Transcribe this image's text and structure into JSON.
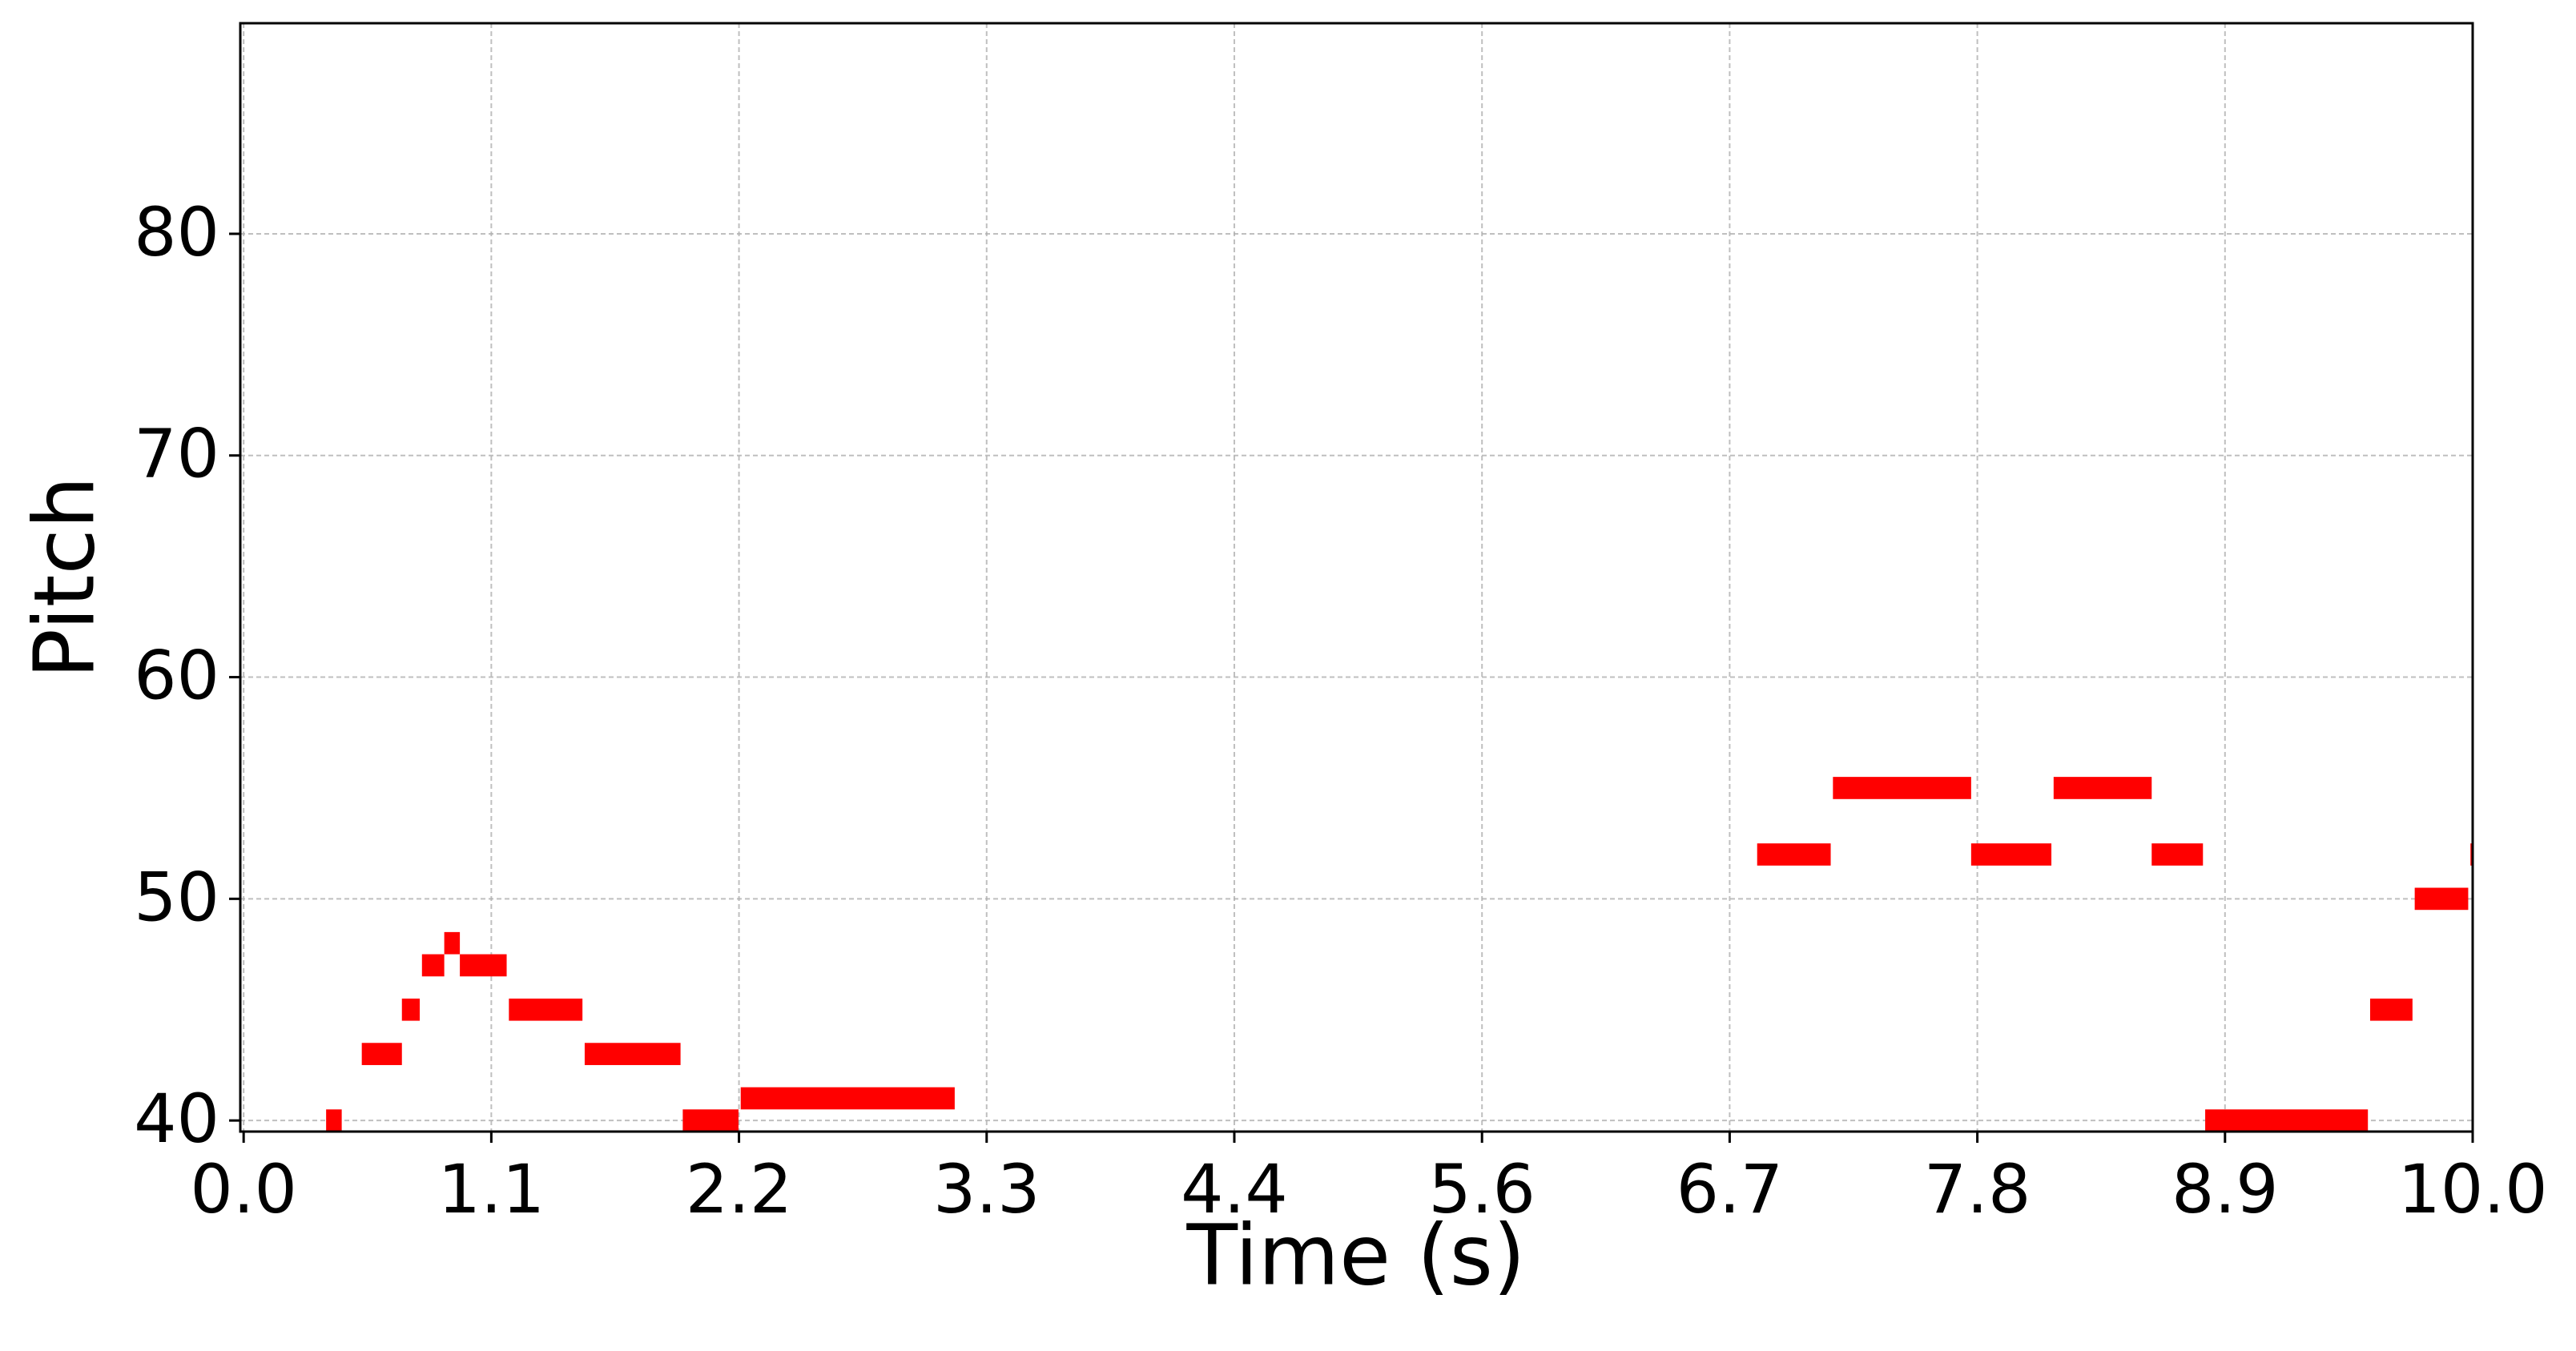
{
  "chart_data": {
    "type": "pianoroll",
    "xlabel": "Time (s)",
    "ylabel": "Pitch",
    "color": "#ff0000",
    "grid": true,
    "xlim": [
      -0.015,
      10.0
    ],
    "ylim": [
      39.5,
      89.5
    ],
    "xticks": [
      {
        "value": 0,
        "label": "0.0"
      },
      {
        "value": 1.1111,
        "label": "1.1"
      },
      {
        "value": 2.2222,
        "label": "2.2"
      },
      {
        "value": 3.3333,
        "label": "3.3"
      },
      {
        "value": 4.4444,
        "label": "4.4"
      },
      {
        "value": 5.5556,
        "label": "5.6"
      },
      {
        "value": 6.6667,
        "label": "6.7"
      },
      {
        "value": 7.7778,
        "label": "7.8"
      },
      {
        "value": 8.8889,
        "label": "8.9"
      },
      {
        "value": 10,
        "label": "10.0"
      }
    ],
    "yticks": [
      40,
      50,
      60,
      70,
      80
    ],
    "notes": [
      {
        "start": 0.37,
        "end": 0.44,
        "pitch": 40
      },
      {
        "start": 0.53,
        "end": 0.71,
        "pitch": 43
      },
      {
        "start": 0.71,
        "end": 0.79,
        "pitch": 45
      },
      {
        "start": 0.8,
        "end": 0.9,
        "pitch": 47
      },
      {
        "start": 0.9,
        "end": 0.97,
        "pitch": 48
      },
      {
        "start": 0.97,
        "end": 1.18,
        "pitch": 47
      },
      {
        "start": 1.19,
        "end": 1.52,
        "pitch": 45
      },
      {
        "start": 1.53,
        "end": 1.96,
        "pitch": 43
      },
      {
        "start": 1.97,
        "end": 2.22,
        "pitch": 40
      },
      {
        "start": 2.23,
        "end": 3.19,
        "pitch": 41
      },
      {
        "start": 6.79,
        "end": 7.12,
        "pitch": 52
      },
      {
        "start": 7.13,
        "end": 7.75,
        "pitch": 55
      },
      {
        "start": 7.75,
        "end": 8.11,
        "pitch": 52
      },
      {
        "start": 8.12,
        "end": 8.56,
        "pitch": 55
      },
      {
        "start": 8.56,
        "end": 8.79,
        "pitch": 52
      },
      {
        "start": 8.8,
        "end": 9.53,
        "pitch": 40
      },
      {
        "start": 9.54,
        "end": 9.73,
        "pitch": 45
      },
      {
        "start": 9.74,
        "end": 9.98,
        "pitch": 50
      },
      {
        "start": 9.99,
        "end": 10.1,
        "pitch": 52
      }
    ]
  }
}
